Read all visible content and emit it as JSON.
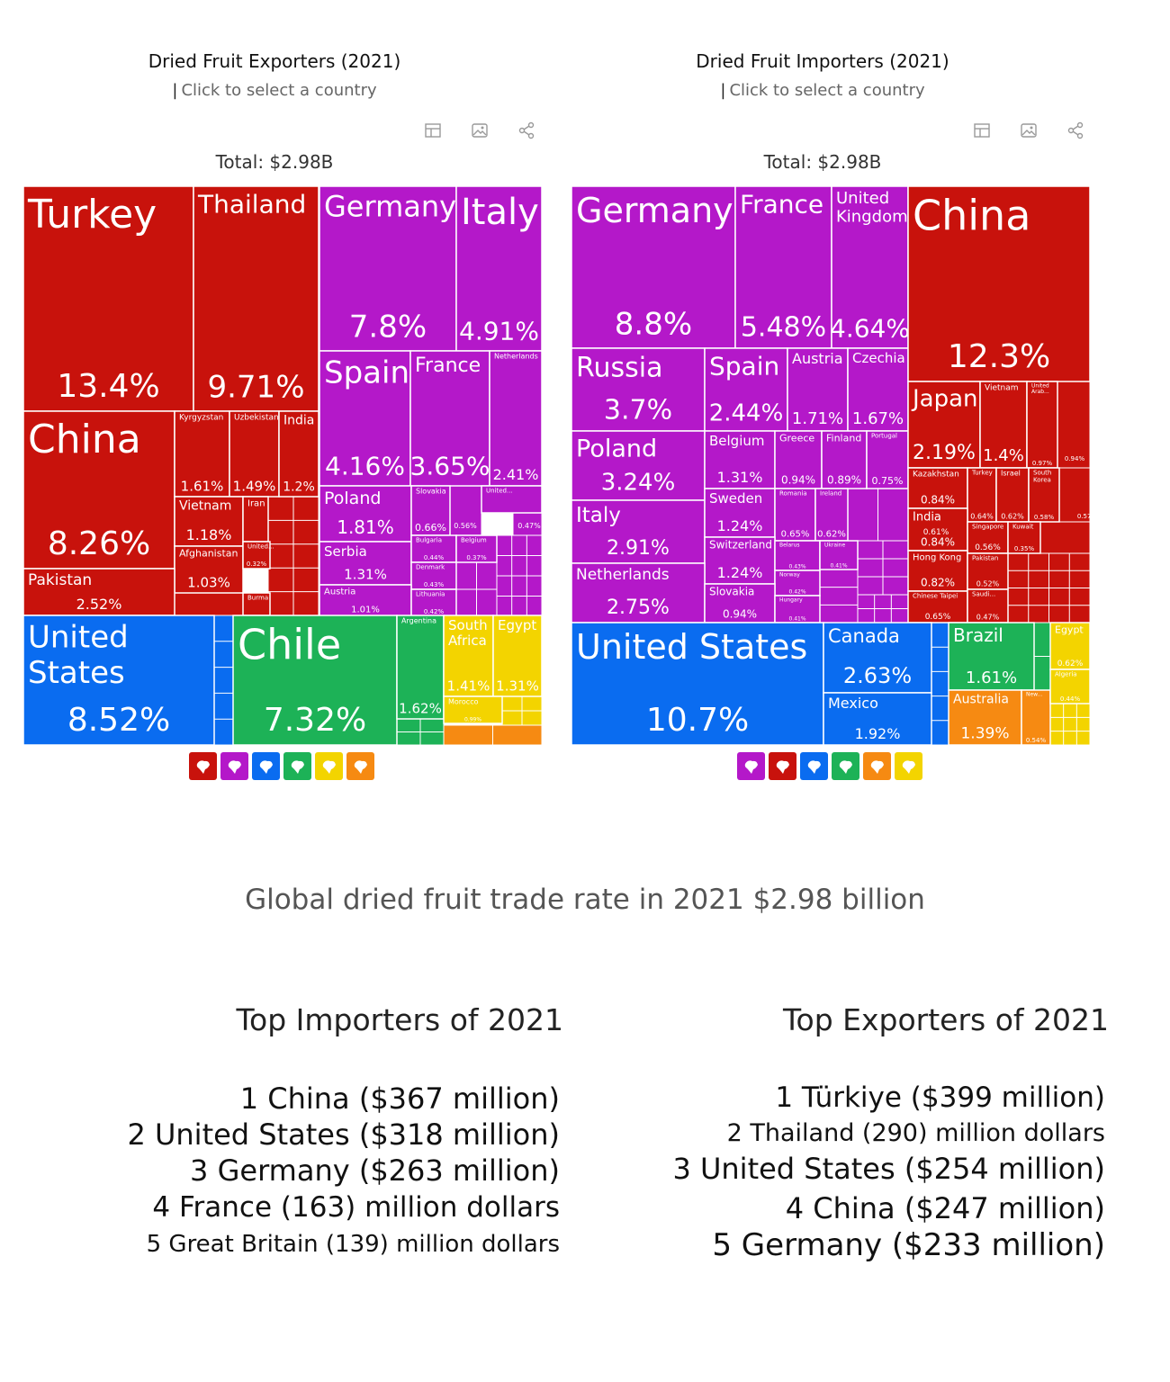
{
  "exporters": {
    "title": "Dried Fruit Exporters (2021)",
    "subtitle": "Click to select a country",
    "total": "Total: $2.98B",
    "icons": [
      "table-icon",
      "image-icon",
      "share-icon"
    ],
    "legend": [
      {
        "name": "asia-legend-icon",
        "color": "#c8120c"
      },
      {
        "name": "europe-legend-icon",
        "color": "#b418c9"
      },
      {
        "name": "north-america-legend-icon",
        "color": "#0a6cf0"
      },
      {
        "name": "south-america-legend-icon",
        "color": "#1db257"
      },
      {
        "name": "africa-legend-icon",
        "color": "#f3d400"
      },
      {
        "name": "oceania-legend-icon",
        "color": "#f68a12"
      }
    ]
  },
  "importers": {
    "title": "Dried Fruit Importers (2021)",
    "subtitle": "Click to select a country",
    "total": "Total: $2.98B",
    "icons": [
      "table-icon",
      "image-icon",
      "share-icon"
    ],
    "legend": [
      {
        "name": "europe-legend-icon",
        "color": "#b418c9"
      },
      {
        "name": "asia-legend-icon",
        "color": "#c8120c"
      },
      {
        "name": "north-america-legend-icon",
        "color": "#0a6cf0"
      },
      {
        "name": "south-america-legend-icon",
        "color": "#1db257"
      },
      {
        "name": "oceania-legend-icon",
        "color": "#f68a12"
      },
      {
        "name": "africa-legend-icon",
        "color": "#f3d400"
      }
    ]
  },
  "colors": {
    "asia": "#c8120c",
    "europe": "#b418c9",
    "north_america": "#0a6cf0",
    "south_america": "#1db257",
    "africa": "#f3d400",
    "oceania": "#f68a12",
    "africa_text": "#8a7a10"
  },
  "chart_data": [
    {
      "type": "treemap",
      "title": "Dried Fruit Exporters (2021)",
      "total": "$2.98B",
      "unit": "% of world exports",
      "items": [
        {
          "label": "Turkey",
          "value": "13.4%",
          "region": "asia"
        },
        {
          "label": "Thailand",
          "value": "9.71%",
          "region": "asia"
        },
        {
          "label": "China",
          "value": "8.26%",
          "region": "asia"
        },
        {
          "label": "Kyrgyzstan",
          "value": "1.61%",
          "region": "asia"
        },
        {
          "label": "Uzbekistan",
          "value": "1.49%",
          "region": "asia"
        },
        {
          "label": "India",
          "value": "1.2%",
          "region": "asia"
        },
        {
          "label": "Vietnam",
          "value": "1.18%",
          "region": "asia"
        },
        {
          "label": "Iran",
          "value": "",
          "region": "asia"
        },
        {
          "label": "Afghanistan",
          "value": "1.03%",
          "region": "asia"
        },
        {
          "label": "United...",
          "value": "0.32%",
          "region": "asia"
        },
        {
          "label": "Pakistan",
          "value": "2.52%",
          "region": "asia"
        },
        {
          "label": "Burma",
          "value": "",
          "region": "asia"
        },
        {
          "label": "Germany",
          "value": "7.8%",
          "region": "europe"
        },
        {
          "label": "Italy",
          "value": "4.91%",
          "region": "europe"
        },
        {
          "label": "Spain",
          "value": "4.16%",
          "region": "europe"
        },
        {
          "label": "France",
          "value": "3.65%",
          "region": "europe"
        },
        {
          "label": "Netherlands",
          "value": "2.41%",
          "region": "europe"
        },
        {
          "label": "Poland",
          "value": "1.81%",
          "region": "europe"
        },
        {
          "label": "Slovakia",
          "value": "0.66%",
          "region": "europe"
        },
        {
          "label": "United...",
          "value": "0.56%",
          "region": "europe"
        },
        {
          "label": "Serbia",
          "value": "1.31%",
          "region": "europe"
        },
        {
          "label": "Bulgaria",
          "value": "0.44%",
          "region": "europe"
        },
        {
          "label": "Belgium",
          "value": "0.37%",
          "region": "europe"
        },
        {
          "label": "Denmark",
          "value": "0.43%",
          "region": "europe"
        },
        {
          "label": "Austria",
          "value": "1.01%",
          "region": "europe"
        },
        {
          "label": "Lithuania",
          "value": "0.42%",
          "region": "europe"
        },
        {
          "label": "United States",
          "value": "8.52%",
          "region": "north_america"
        },
        {
          "label": "Chile",
          "value": "7.32%",
          "region": "south_america"
        },
        {
          "label": "Argentina",
          "value": "1.62%",
          "region": "south_america"
        },
        {
          "label": "South Africa",
          "value": "1.41%",
          "region": "africa"
        },
        {
          "label": "Egypt",
          "value": "1.31%",
          "region": "africa"
        },
        {
          "label": "Morocco",
          "value": "0.99%",
          "region": "africa"
        }
      ],
      "extra_values": [
        "0.56%",
        "0.47%"
      ]
    },
    {
      "type": "treemap",
      "title": "Dried Fruit Importers (2021)",
      "total": "$2.98B",
      "unit": "% of world imports",
      "items": [
        {
          "label": "Germany",
          "value": "8.8%",
          "region": "europe"
        },
        {
          "label": "France",
          "value": "5.48%",
          "region": "europe"
        },
        {
          "label": "United Kingdom",
          "value": "4.64%",
          "region": "europe"
        },
        {
          "label": "Russia",
          "value": "3.7%",
          "region": "europe"
        },
        {
          "label": "Spain",
          "value": "2.44%",
          "region": "europe"
        },
        {
          "label": "Austria",
          "value": "1.71%",
          "region": "europe"
        },
        {
          "label": "Czechia",
          "value": "1.67%",
          "region": "europe"
        },
        {
          "label": "Poland",
          "value": "3.24%",
          "region": "europe"
        },
        {
          "label": "Belgium",
          "value": "1.31%",
          "region": "europe"
        },
        {
          "label": "Greece",
          "value": "0.94%",
          "region": "europe"
        },
        {
          "label": "Finland",
          "value": "0.89%",
          "region": "europe"
        },
        {
          "label": "Portugal",
          "value": "0.75%",
          "region": "europe"
        },
        {
          "label": "Italy",
          "value": "2.91%",
          "region": "europe"
        },
        {
          "label": "Sweden",
          "value": "1.24%",
          "region": "europe"
        },
        {
          "label": "Romania",
          "value": "0.65%",
          "region": "europe"
        },
        {
          "label": "Ireland",
          "value": "0.62%",
          "region": "europe"
        },
        {
          "label": "Switzerland",
          "value": "1.24%",
          "region": "europe"
        },
        {
          "label": "Belarus",
          "value": "0.43%",
          "region": "europe"
        },
        {
          "label": "Ukraine",
          "value": "0.41%",
          "region": "europe"
        },
        {
          "label": "Netherlands",
          "value": "2.75%",
          "region": "europe"
        },
        {
          "label": "Norway",
          "value": "0.42%",
          "region": "europe"
        },
        {
          "label": "Slovakia",
          "value": "0.94%",
          "region": "europe"
        },
        {
          "label": "Hungary",
          "value": "0.41%",
          "region": "europe"
        },
        {
          "label": "China",
          "value": "12.3%",
          "region": "asia"
        },
        {
          "label": "Japan",
          "value": "2.19%",
          "region": "asia"
        },
        {
          "label": "Vietnam",
          "value": "1.4%",
          "region": "asia"
        },
        {
          "label": "United Arab...",
          "value": "0.97%",
          "region": "asia"
        },
        {
          "label": "Kazakhstan",
          "value": "0.84%",
          "region": "asia"
        },
        {
          "label": "Turkey",
          "value": "0.64%",
          "region": "asia"
        },
        {
          "label": "Israel",
          "value": "0.62%",
          "region": "asia"
        },
        {
          "label": "South Korea",
          "value": "0.58%",
          "region": "asia"
        },
        {
          "label": "India",
          "value": "0.84%",
          "region": "asia"
        },
        {
          "label": "Singapore",
          "value": "0.56%",
          "region": "asia"
        },
        {
          "label": "Kuwait",
          "value": "0.35%",
          "region": "asia"
        },
        {
          "label": "Hong Kong",
          "value": "0.82%",
          "region": "asia"
        },
        {
          "label": "Pakistan",
          "value": "0.52%",
          "region": "asia"
        },
        {
          "label": "Chinese Taipei",
          "value": "0.65%",
          "region": "asia"
        },
        {
          "label": "Saudi...",
          "value": "0.47%",
          "region": "asia"
        },
        {
          "label": "United States",
          "value": "10.7%",
          "region": "north_america"
        },
        {
          "label": "Canada",
          "value": "2.63%",
          "region": "north_america"
        },
        {
          "label": "Mexico",
          "value": "1.92%",
          "region": "north_america"
        },
        {
          "label": "Brazil",
          "value": "1.61%",
          "region": "south_america"
        },
        {
          "label": "Australia",
          "value": "1.39%",
          "region": "oceania"
        },
        {
          "label": "New...",
          "value": "0.54%",
          "region": "oceania"
        },
        {
          "label": "Egypt",
          "value": "0.62%",
          "region": "africa"
        },
        {
          "label": "Algeria",
          "value": "0.44%",
          "region": "africa"
        }
      ],
      "extra_values": [
        "0.6%",
        "0.94%",
        "0.61%",
        "0.57%"
      ]
    }
  ],
  "headline": "Global dried fruit trade rate in 2021 $2.98 billion",
  "top_importers": {
    "title": "Top Importers of 2021",
    "items": [
      "1 China ($367 million)",
      "2 United States ($318 million)",
      "3 Germany ($263 million)",
      "4 France (163) million dollars",
      "5 Great Britain (139) million dollars"
    ]
  },
  "top_exporters": {
    "title": "Top Exporters of 2021",
    "items": [
      "1 Türkiye ($399 million)",
      "2 Thailand (290) million dollars",
      "3 United States ($254 million)",
      "4 China ($247 million)",
      "5 Germany ($233 million)"
    ]
  }
}
